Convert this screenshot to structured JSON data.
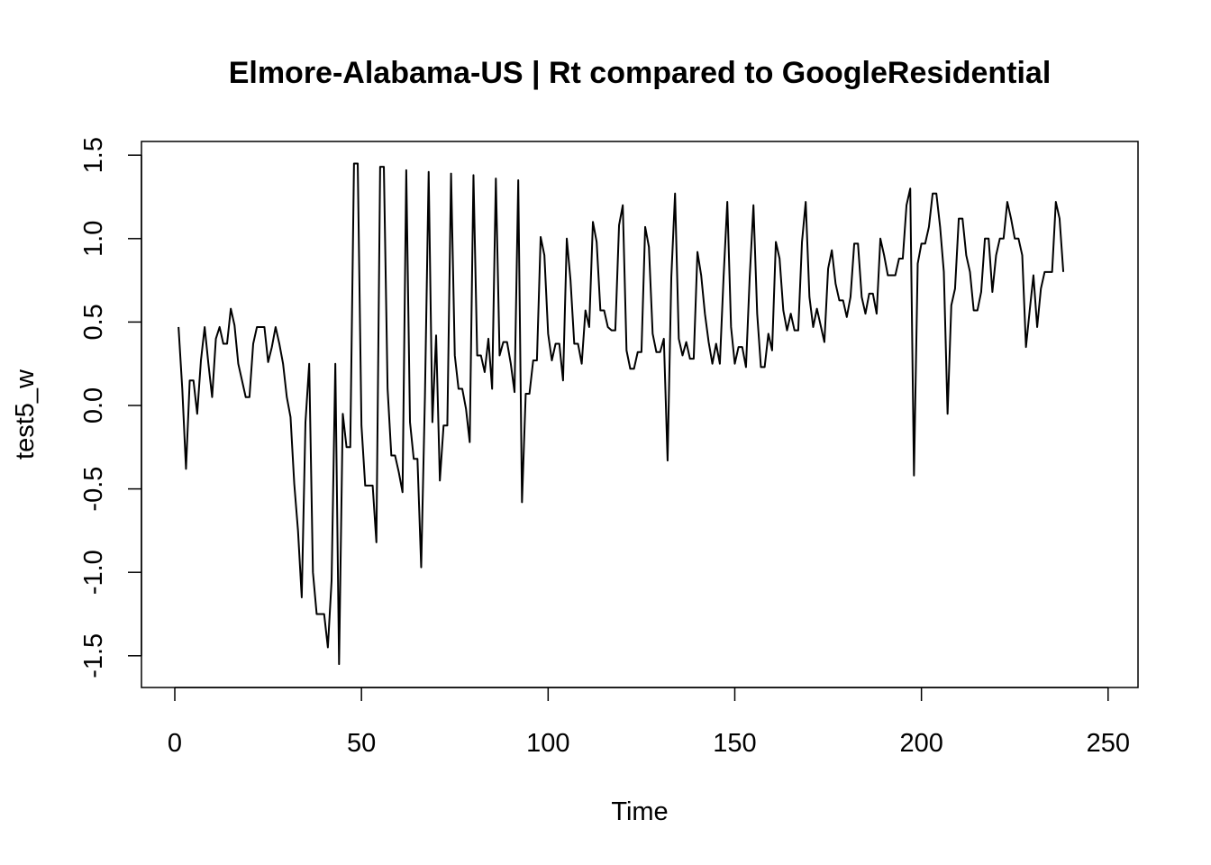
{
  "chart_data": {
    "type": "line",
    "title": "Elmore-Alabama-US | Rt compared to GoogleResidential",
    "xlabel": "Time",
    "ylabel": "test5_w",
    "xlim": [
      1,
      248
    ],
    "ylim": [
      -1.65,
      1.6
    ],
    "x_ticks": [
      0,
      50,
      100,
      150,
      200,
      250
    ],
    "x_tick_labels": [
      "0",
      "50",
      "100",
      "150",
      "200",
      "250"
    ],
    "y_ticks": [
      -1.5,
      -1.0,
      -0.5,
      0.0,
      0.5,
      1.0,
      1.5
    ],
    "y_tick_labels": [
      "-1.5",
      "-1.0",
      "-0.5",
      "0.0",
      "0.5",
      "1.0",
      "1.5"
    ],
    "grid": false,
    "legend": "none",
    "line_color": "#000000",
    "x_start": 1,
    "values": [
      0.47,
      0.1,
      -0.38,
      0.15,
      0.15,
      -0.05,
      0.27,
      0.47,
      0.25,
      0.05,
      0.4,
      0.47,
      0.37,
      0.37,
      0.58,
      0.48,
      0.25,
      0.15,
      0.05,
      0.05,
      0.37,
      0.47,
      0.47,
      0.47,
      0.26,
      0.35,
      0.47,
      0.37,
      0.25,
      0.05,
      -0.07,
      -0.47,
      -0.75,
      -1.15,
      -0.1,
      0.25,
      -1.0,
      -1.25,
      -1.25,
      -1.25,
      -1.45,
      -1.05,
      0.25,
      -1.55,
      -0.05,
      -0.25,
      -0.25,
      1.45,
      1.45,
      -0.12,
      -0.48,
      -0.48,
      -0.48,
      -0.82,
      1.43,
      1.43,
      0.1,
      -0.3,
      -0.3,
      -0.4,
      -0.52,
      1.41,
      -0.1,
      -0.32,
      -0.32,
      -0.97,
      0.05,
      1.4,
      -0.1,
      0.42,
      -0.45,
      -0.12,
      -0.12,
      1.39,
      0.3,
      0.1,
      0.1,
      -0.02,
      -0.22,
      1.38,
      0.3,
      0.3,
      0.2,
      0.4,
      0.1,
      1.36,
      0.3,
      0.38,
      0.38,
      0.25,
      0.08,
      1.35,
      -0.58,
      0.07,
      0.07,
      0.27,
      0.27,
      1.01,
      0.9,
      0.43,
      0.27,
      0.37,
      0.37,
      0.15,
      1.0,
      0.75,
      0.37,
      0.37,
      0.25,
      0.57,
      0.47,
      1.1,
      0.98,
      0.57,
      0.57,
      0.47,
      0.45,
      0.45,
      1.08,
      1.2,
      0.33,
      0.22,
      0.22,
      0.32,
      0.32,
      1.07,
      0.95,
      0.43,
      0.32,
      0.32,
      0.4,
      -0.33,
      0.77,
      1.27,
      0.4,
      0.3,
      0.38,
      0.28,
      0.28,
      0.92,
      0.78,
      0.55,
      0.38,
      0.25,
      0.37,
      0.25,
      0.77,
      1.22,
      0.47,
      0.25,
      0.35,
      0.35,
      0.23,
      0.77,
      1.2,
      0.55,
      0.23,
      0.23,
      0.43,
      0.33,
      0.98,
      0.88,
      0.57,
      0.45,
      0.55,
      0.45,
      0.45,
      0.98,
      1.22,
      0.65,
      0.47,
      0.58,
      0.48,
      0.38,
      0.82,
      0.93,
      0.73,
      0.63,
      0.63,
      0.53,
      0.65,
      0.97,
      0.97,
      0.65,
      0.55,
      0.67,
      0.67,
      0.55,
      1.0,
      0.9,
      0.78,
      0.78,
      0.78,
      0.88,
      0.88,
      1.2,
      1.3,
      -0.42,
      0.85,
      0.97,
      0.97,
      1.07,
      1.27,
      1.27,
      1.07,
      0.8,
      -0.05,
      0.6,
      0.7,
      1.12,
      1.12,
      0.9,
      0.8,
      0.57,
      0.57,
      0.68,
      1.0,
      1.0,
      0.68,
      0.9,
      1.0,
      1.0,
      1.22,
      1.12,
      1.0,
      1.0,
      0.9,
      0.35,
      0.57,
      0.78,
      0.47,
      0.7,
      0.8,
      0.8,
      0.8,
      1.22,
      1.12,
      0.8
    ]
  }
}
